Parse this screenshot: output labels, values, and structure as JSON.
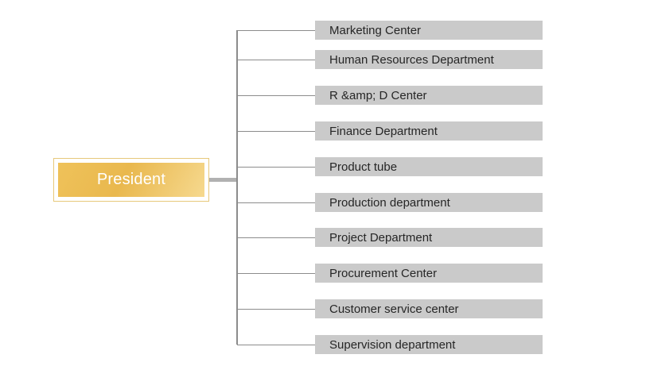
{
  "org_chart": {
    "root": {
      "label": "President"
    },
    "departments": [
      {
        "label": "Marketing Center"
      },
      {
        "label": "Human Resources Department"
      },
      {
        "label": "R &amp; D Center"
      },
      {
        "label": "Finance Department"
      },
      {
        "label": "Product tube"
      },
      {
        "label": "Production department"
      },
      {
        "label": "Project Department"
      },
      {
        "label": "Procurement Center"
      },
      {
        "label": "Customer service center"
      },
      {
        "label": "Supervision department"
      }
    ],
    "colors": {
      "root_gradient_start": "#efc25a",
      "root_gradient_mid": "#e9b84e",
      "root_gradient_end": "#f6d98f",
      "root_border": "#e7c87a",
      "root_text": "#ffffff",
      "node_fill": "#cacaca",
      "node_text": "#262626",
      "connector": "#8c8c8c",
      "connector_thick": "#b1b1b1",
      "background": "#ffffff"
    }
  }
}
